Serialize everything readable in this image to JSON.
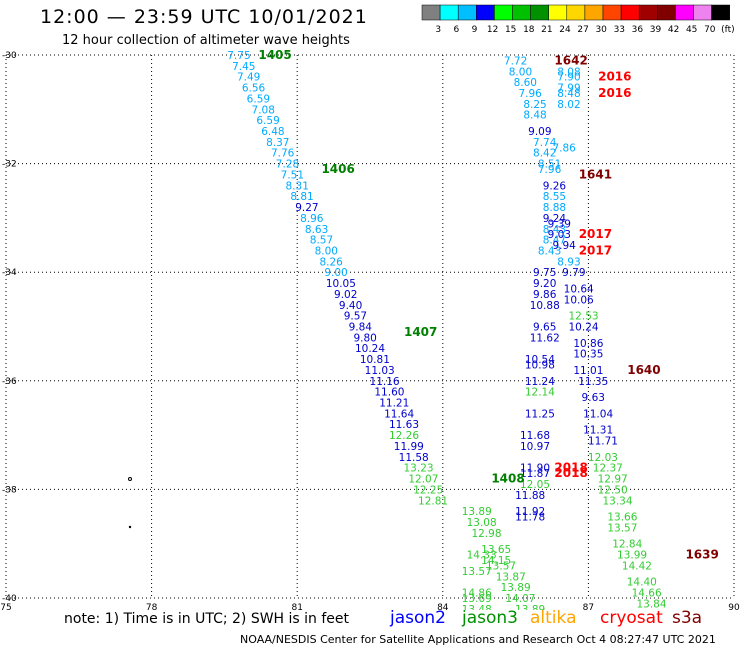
{
  "header": {
    "title": "12:00 — 23:59 UTC 10/01/2021",
    "subtitle": "12 hour collection of altimeter wave heights"
  },
  "colorbar": {
    "labels": [
      "3",
      "6",
      "9",
      "12",
      "15",
      "18",
      "21",
      "24",
      "27",
      "30",
      "33",
      "36",
      "39",
      "42",
      "45",
      "70",
      "(ft)"
    ],
    "colors": [
      "#808080",
      "#00ffff",
      "#00bfff",
      "#0000ff",
      "#00ff00",
      "#00c000",
      "#009000",
      "#ffff00",
      "#ffd700",
      "#ffa500",
      "#ff4500",
      "#ff0000",
      "#a00000",
      "#800000",
      "#ff00ff",
      "#ee82ee",
      "#000000"
    ]
  },
  "chart_data": {
    "type": "map",
    "x_range": [
      75,
      90
    ],
    "y_range": [
      -40,
      -30
    ],
    "x_ticks": [
      "75",
      "78",
      "81",
      "84",
      "87",
      "90"
    ],
    "y_ticks": [
      "-30",
      "-32",
      "-34",
      "-36",
      "-38",
      "-40"
    ],
    "grid": "dotted",
    "tracks": [
      {
        "label": "1405",
        "label_color": "#008000",
        "points": [
          [
            79.8,
            -30.0,
            "7.75",
            "#00aaff"
          ],
          [
            79.9,
            -30.2,
            "7.45",
            "#00aaff"
          ],
          [
            80.0,
            -30.4,
            "7.49",
            "#00aaff"
          ],
          [
            80.1,
            -30.6,
            "6.56",
            "#00aaff"
          ],
          [
            80.2,
            -30.8,
            "6.59",
            "#00aaff"
          ],
          [
            80.3,
            -31.0,
            "7.08",
            "#00aaff"
          ],
          [
            80.4,
            -31.2,
            "6.59",
            "#00aaff"
          ],
          [
            80.5,
            -31.4,
            "6.48",
            "#00aaff"
          ],
          [
            80.6,
            -31.6,
            "8.37",
            "#00aaff"
          ],
          [
            80.7,
            -31.8,
            "7.76",
            "#00aaff"
          ],
          [
            80.8,
            -32.0,
            "7.28",
            "#00aaff"
          ],
          [
            80.9,
            -32.2,
            "7.51",
            "#00aaff"
          ],
          [
            81.0,
            -32.4,
            "8.31",
            "#00aaff"
          ],
          [
            81.1,
            -32.6,
            "8.81",
            "#00aaff"
          ],
          [
            81.2,
            -32.8,
            "9.27",
            "#0000cc"
          ],
          [
            81.3,
            -33.0,
            "8.96",
            "#00aaff"
          ],
          [
            81.4,
            -33.2,
            "8.63",
            "#00aaff"
          ],
          [
            81.5,
            -33.4,
            "8.57",
            "#00aaff"
          ],
          [
            81.6,
            -33.6,
            "8.00",
            "#00aaff"
          ],
          [
            81.7,
            -33.8,
            "8.26",
            "#00aaff"
          ],
          [
            81.8,
            -34.0,
            "9.00",
            "#00aaff"
          ],
          [
            81.9,
            -34.2,
            "10.05",
            "#0000cc"
          ],
          [
            82.0,
            -34.4,
            "9.02",
            "#0000cc"
          ],
          [
            82.1,
            -34.6,
            "9.40",
            "#0000cc"
          ],
          [
            82.2,
            -34.8,
            "9.57",
            "#0000cc"
          ],
          [
            82.3,
            -35.0,
            "9.84",
            "#0000cc"
          ],
          [
            82.4,
            -35.2,
            "9.80",
            "#0000cc"
          ],
          [
            82.5,
            -35.4,
            "10.24",
            "#0000cc"
          ],
          [
            82.6,
            -35.6,
            "10.81",
            "#0000cc"
          ],
          [
            82.7,
            -35.8,
            "11.03",
            "#0000cc"
          ],
          [
            82.8,
            -36.0,
            "11.16",
            "#0000cc"
          ],
          [
            82.9,
            -36.2,
            "11.60",
            "#0000cc"
          ],
          [
            83.0,
            -36.4,
            "11.21",
            "#0000cc"
          ],
          [
            83.1,
            -36.6,
            "11.64",
            "#0000cc"
          ],
          [
            83.2,
            -36.8,
            "11.63",
            "#0000cc"
          ],
          [
            83.2,
            -37.0,
            "12.26",
            "#33cc33"
          ],
          [
            83.3,
            -37.2,
            "11.99",
            "#0000cc"
          ],
          [
            83.4,
            -37.4,
            "11.58",
            "#0000cc"
          ],
          [
            83.5,
            -37.6,
            "13.23",
            "#33cc33"
          ],
          [
            83.6,
            -37.8,
            "12.07",
            "#33cc33"
          ],
          [
            83.7,
            -38.0,
            "12.25",
            "#33cc33"
          ],
          [
            83.8,
            -38.2,
            "12.81",
            "#33cc33"
          ]
        ]
      },
      {
        "label": "1406",
        "label_color": "#008000",
        "points": []
      },
      {
        "label": "1407",
        "label_color": "#008000",
        "points": []
      },
      {
        "label": "1408",
        "label_color": "#008000",
        "points": []
      },
      {
        "label": "1642",
        "label_color": "#800000",
        "points": []
      },
      {
        "label": "1641",
        "label_color": "#800000",
        "points": []
      },
      {
        "label": "1640",
        "label_color": "#800000",
        "points": []
      },
      {
        "label": "1639",
        "label_color": "#800000",
        "points": []
      },
      {
        "label": "2016",
        "label_color": "#ff0000",
        "points": []
      },
      {
        "label": "2017",
        "label_color": "#ff0000",
        "points": []
      },
      {
        "label": "2018",
        "label_color": "#ff0000",
        "points": []
      }
    ],
    "readings": [
      [
        85.5,
        -30.1,
        "7.72",
        "#00aaff"
      ],
      [
        85.6,
        -30.3,
        "8.00",
        "#00aaff"
      ],
      [
        85.7,
        -30.5,
        "8.60",
        "#00aaff"
      ],
      [
        85.8,
        -30.7,
        "7.96",
        "#00aaff"
      ],
      [
        85.9,
        -30.9,
        "8.25",
        "#00aaff"
      ],
      [
        85.9,
        -31.1,
        "8.48",
        "#00aaff"
      ],
      [
        86.0,
        -31.4,
        "9.09",
        "#0000cc"
      ],
      [
        86.1,
        -31.6,
        "7.74",
        "#00aaff"
      ],
      [
        86.1,
        -31.8,
        "8.42",
        "#00aaff"
      ],
      [
        86.2,
        -32.0,
        "8.51",
        "#00aaff"
      ],
      [
        86.2,
        -32.1,
        "7.96",
        "#00aaff"
      ],
      [
        86.3,
        -32.4,
        "9.26",
        "#0000cc"
      ],
      [
        86.3,
        -32.6,
        "8.55",
        "#00aaff"
      ],
      [
        86.3,
        -32.8,
        "8.88",
        "#00aaff"
      ],
      [
        86.3,
        -33.0,
        "9.24",
        "#0000cc"
      ],
      [
        86.3,
        -33.2,
        "8.43",
        "#00aaff"
      ],
      [
        86.3,
        -33.4,
        "8.47",
        "#00aaff"
      ],
      [
        86.2,
        -33.6,
        "8.43",
        "#00aaff"
      ],
      [
        86.1,
        -34.0,
        "9.75",
        "#0000cc"
      ],
      [
        86.1,
        -34.2,
        "9.20",
        "#0000cc"
      ],
      [
        86.1,
        -34.4,
        "9.86",
        "#0000cc"
      ],
      [
        86.1,
        -34.6,
        "10.88",
        "#0000cc"
      ],
      [
        86.1,
        -35.0,
        "9.65",
        "#0000cc"
      ],
      [
        86.1,
        -35.2,
        "11.62",
        "#0000cc"
      ],
      [
        86.0,
        -35.6,
        "10.54",
        "#0000cc"
      ],
      [
        86.0,
        -35.7,
        "10.98",
        "#0000cc"
      ],
      [
        86.0,
        -36.0,
        "11.24",
        "#0000cc"
      ],
      [
        86.0,
        -36.2,
        "12.14",
        "#33cc33"
      ],
      [
        86.0,
        -36.6,
        "11.25",
        "#0000cc"
      ],
      [
        85.9,
        -37.0,
        "11.68",
        "#0000cc"
      ],
      [
        85.9,
        -37.2,
        "10.97",
        "#0000cc"
      ],
      [
        85.9,
        -37.6,
        "11.90",
        "#0000cc"
      ],
      [
        85.9,
        -37.7,
        "11.87",
        "#0000cc"
      ],
      [
        85.9,
        -37.9,
        "12.05",
        "#33cc33"
      ],
      [
        85.8,
        -38.1,
        "11.88",
        "#0000cc"
      ],
      [
        85.8,
        -38.4,
        "11.92",
        "#0000cc"
      ],
      [
        85.8,
        -38.5,
        "11.78",
        "#0000cc"
      ],
      [
        86.6,
        -30.3,
        "8.08",
        "#00aaff"
      ],
      [
        86.6,
        -30.4,
        "7.90",
        "#00aaff"
      ],
      [
        86.6,
        -30.6,
        "7.99",
        "#00aaff"
      ],
      [
        86.6,
        -30.7,
        "8.48",
        "#00aaff"
      ],
      [
        86.6,
        -30.9,
        "8.02",
        "#00aaff"
      ],
      [
        86.5,
        -31.7,
        "7.86",
        "#00aaff"
      ],
      [
        86.4,
        -33.1,
        "9.39",
        "#0000cc"
      ],
      [
        86.4,
        -33.3,
        "9.03",
        "#0000cc"
      ],
      [
        86.5,
        -33.5,
        "9.94",
        "#0000cc"
      ],
      [
        86.6,
        -33.8,
        "8.93",
        "#00aaff"
      ],
      [
        86.7,
        -34.0,
        "9.79",
        "#0000cc"
      ],
      [
        86.8,
        -34.3,
        "10.64",
        "#0000cc"
      ],
      [
        86.8,
        -34.5,
        "10.06",
        "#0000cc"
      ],
      [
        86.9,
        -34.8,
        "12.53",
        "#33cc33"
      ],
      [
        86.9,
        -35.0,
        "10.24",
        "#0000cc"
      ],
      [
        87.0,
        -35.3,
        "10.86",
        "#0000cc"
      ],
      [
        87.0,
        -35.5,
        "10.35",
        "#0000cc"
      ],
      [
        87.0,
        -35.8,
        "11.01",
        "#0000cc"
      ],
      [
        87.1,
        -36.0,
        "11.35",
        "#0000cc"
      ],
      [
        87.1,
        -36.3,
        "9.63",
        "#0000cc"
      ],
      [
        87.2,
        -36.6,
        "11.04",
        "#0000cc"
      ],
      [
        87.2,
        -36.9,
        "11.31",
        "#0000cc"
      ],
      [
        87.3,
        -37.1,
        "11.71",
        "#0000cc"
      ],
      [
        87.3,
        -37.4,
        "12.03",
        "#33cc33"
      ],
      [
        87.4,
        -37.6,
        "12.37",
        "#33cc33"
      ],
      [
        87.5,
        -37.8,
        "12.97",
        "#33cc33"
      ],
      [
        87.5,
        -38.0,
        "12.50",
        "#33cc33"
      ],
      [
        87.6,
        -38.2,
        "13.34",
        "#33cc33"
      ],
      [
        87.7,
        -38.5,
        "13.66",
        "#33cc33"
      ],
      [
        87.7,
        -38.7,
        "13.57",
        "#33cc33"
      ],
      [
        87.8,
        -39.0,
        "12.84",
        "#33cc33"
      ],
      [
        87.9,
        -39.2,
        "13.99",
        "#33cc33"
      ],
      [
        88.0,
        -39.4,
        "14.42",
        "#33cc33"
      ],
      [
        88.1,
        -39.7,
        "14.40",
        "#33cc33"
      ],
      [
        88.2,
        -39.9,
        "14.66",
        "#33cc33"
      ],
      [
        88.3,
        -40.1,
        "13.84",
        "#33cc33"
      ],
      [
        84.7,
        -38.4,
        "13.89",
        "#33cc33"
      ],
      [
        84.8,
        -38.6,
        "13.08",
        "#33cc33"
      ],
      [
        84.9,
        -38.8,
        "12.98",
        "#33cc33"
      ],
      [
        85.1,
        -39.1,
        "13.65",
        "#33cc33"
      ],
      [
        85.1,
        -39.3,
        "14.15",
        "#33cc33"
      ],
      [
        84.8,
        -39.2,
        "14.33",
        "#33cc33"
      ],
      [
        85.2,
        -39.4,
        "13.57",
        "#33cc33"
      ],
      [
        84.7,
        -39.5,
        "13.57",
        "#33cc33"
      ],
      [
        85.4,
        -39.6,
        "13.87",
        "#33cc33"
      ],
      [
        85.5,
        -39.8,
        "13.89",
        "#33cc33"
      ],
      [
        84.7,
        -39.9,
        "14.86",
        "#33cc33"
      ],
      [
        84.7,
        -40.0,
        "13.69",
        "#33cc33"
      ],
      [
        85.6,
        -40.0,
        "14.07",
        "#33cc33"
      ],
      [
        84.7,
        -40.2,
        "13.48",
        "#33cc33"
      ],
      [
        85.8,
        -40.2,
        "13.89",
        "#33cc33"
      ]
    ]
  },
  "pass_labels": [
    {
      "text": "1405",
      "color": "#008000",
      "lon": 80.2,
      "lat": -30.0
    },
    {
      "text": "1406",
      "color": "#008000",
      "lon": 81.5,
      "lat": -32.1
    },
    {
      "text": "1407",
      "color": "#008000",
      "lon": 83.2,
      "lat": -35.1
    },
    {
      "text": "1408",
      "color": "#008000",
      "lon": 85.0,
      "lat": -37.8
    },
    {
      "text": "1642",
      "color": "#800000",
      "lon": 86.3,
      "lat": -30.1
    },
    {
      "text": "2016",
      "color": "#ff0000",
      "lon": 87.2,
      "lat": -30.4
    },
    {
      "text": "2016",
      "color": "#ff0000",
      "lon": 87.2,
      "lat": -30.7
    },
    {
      "text": "1641",
      "color": "#800000",
      "lon": 86.8,
      "lat": -32.2
    },
    {
      "text": "2017",
      "color": "#ff0000",
      "lon": 86.8,
      "lat": -33.3
    },
    {
      "text": "2017",
      "color": "#ff0000",
      "lon": 86.8,
      "lat": -33.6
    },
    {
      "text": "1640",
      "color": "#800000",
      "lon": 87.8,
      "lat": -35.8
    },
    {
      "text": "2018",
      "color": "#ff0000",
      "lon": 86.3,
      "lat": -37.6
    },
    {
      "text": "2018",
      "color": "#ff0000",
      "lon": 86.3,
      "lat": -37.7
    },
    {
      "text": "1639",
      "color": "#800000",
      "lon": 89.0,
      "lat": -39.2
    }
  ],
  "footer": {
    "note": "note: 1) Time is in UTC; 2) SWH is in feet",
    "credit": "NOAA/NESDIS Center for Satellite Applications and Research   Oct  4 08:27:47 UTC 2021",
    "satellites": [
      {
        "name": "jason2",
        "color": "#0000ff"
      },
      {
        "name": "jason3",
        "color": "#009000"
      },
      {
        "name": "altika",
        "color": "#ffa500"
      },
      {
        "name": "cryosat",
        "color": "#ff0000"
      },
      {
        "name": "s3a",
        "color": "#800000"
      }
    ]
  }
}
